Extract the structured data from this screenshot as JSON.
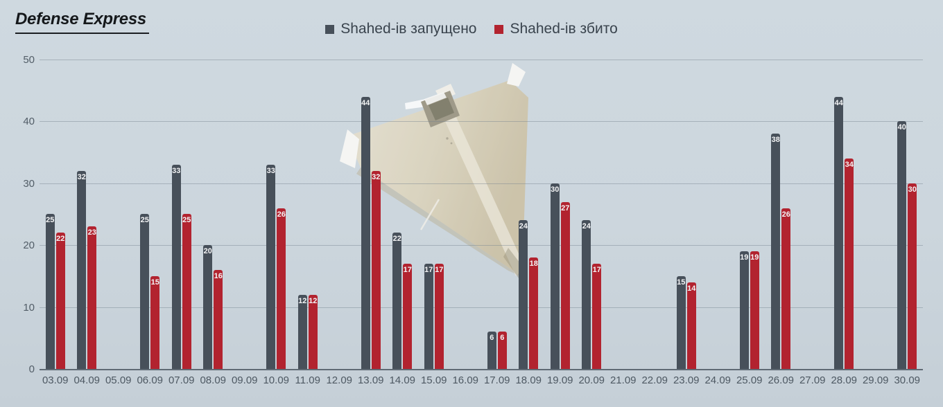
{
  "brand": {
    "logo_text": "Defense Express"
  },
  "legend": {
    "items": [
      {
        "label": "Shahed-ів запущено",
        "color": "#47505a"
      },
      {
        "label": "Shahed-ів збито",
        "color": "#b2232f"
      }
    ]
  },
  "watermark": {
    "icon": "shahed-drone"
  },
  "colors": {
    "background": "#ccd6dd",
    "launched_bar": "#47505a",
    "downed_bar": "#b2232f",
    "gridline": "#76828d",
    "axis_line": "#5f6a74",
    "tick_label": "#4d5862",
    "bar_value_label": "#f4f5f6"
  },
  "chart_data": {
    "type": "bar",
    "title": "",
    "xlabel": "",
    "ylabel": "",
    "ylim": [
      0,
      50
    ],
    "yticks": [
      0,
      10,
      20,
      30,
      40,
      50
    ],
    "grid": "horizontal",
    "legend_position": "top-center",
    "categories": [
      "03.09",
      "04.09",
      "05.09",
      "06.09",
      "07.09",
      "08.09",
      "09.09",
      "10.09",
      "11.09",
      "12.09",
      "13.09",
      "14.09",
      "15.09",
      "16.09",
      "17.09",
      "18.09",
      "19.09",
      "20.09",
      "21.09",
      "22.09",
      "23.09",
      "24.09",
      "25.09",
      "26.09",
      "27.09",
      "28.09",
      "29.09",
      "30.09"
    ],
    "series": [
      {
        "name": "Shahed-ів запущено",
        "color": "#47505a",
        "values": [
          25,
          32,
          0,
          25,
          33,
          20,
          0,
          33,
          12,
          0,
          44,
          22,
          17,
          0,
          6,
          24,
          30,
          24,
          0,
          0,
          15,
          0,
          19,
          38,
          0,
          44,
          0,
          40
        ]
      },
      {
        "name": "Shahed-ів збито",
        "color": "#b2232f",
        "values": [
          22,
          23,
          0,
          15,
          25,
          16,
          0,
          26,
          12,
          0,
          32,
          17,
          17,
          0,
          6,
          18,
          27,
          17,
          0,
          0,
          14,
          0,
          19,
          26,
          0,
          34,
          0,
          30
        ]
      }
    ]
  }
}
